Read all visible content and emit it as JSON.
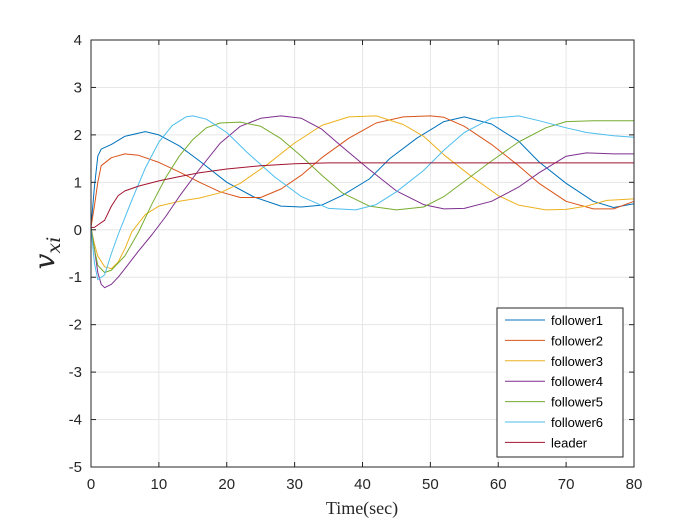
{
  "chart_data": {
    "type": "line",
    "title": "",
    "xlabel": "Time(sec)",
    "ylabel": "v",
    "ylabel_subscript": "xi",
    "xlim": [
      0,
      80
    ],
    "ylim": [
      -5,
      4
    ],
    "xticks": [
      0,
      10,
      20,
      30,
      40,
      50,
      60,
      70,
      80
    ],
    "yticks": [
      -5,
      -4,
      -3,
      -2,
      -1,
      0,
      1,
      2,
      3,
      4
    ],
    "grid": true,
    "legend_position": "bottom-right",
    "series": [
      {
        "name": "follower1",
        "color": "#0072BD",
        "x": [
          0,
          0.5,
          1,
          1.5,
          3,
          5,
          8,
          10,
          13,
          16,
          20,
          24,
          28,
          31,
          34,
          37,
          41,
          44,
          48,
          52,
          55,
          59,
          63,
          66,
          70,
          74,
          77,
          80
        ],
        "y": [
          0.05,
          0.9,
          1.55,
          1.7,
          1.8,
          1.97,
          2.07,
          2.0,
          1.77,
          1.45,
          1.0,
          0.69,
          0.5,
          0.48,
          0.52,
          0.72,
          1.07,
          1.5,
          1.93,
          2.28,
          2.38,
          2.23,
          1.87,
          1.43,
          0.98,
          0.6,
          0.47,
          0.55
        ]
      },
      {
        "name": "follower2",
        "color": "#D95319",
        "x": [
          0,
          0.5,
          1,
          1.5,
          3,
          5,
          7,
          10,
          13,
          16,
          19,
          22,
          25,
          28,
          31,
          34,
          38,
          42,
          46,
          50,
          52,
          55,
          59,
          63,
          66,
          70,
          74,
          77,
          80
        ],
        "y": [
          0.05,
          0.5,
          1.0,
          1.35,
          1.52,
          1.6,
          1.57,
          1.42,
          1.22,
          1.0,
          0.8,
          0.68,
          0.68,
          0.86,
          1.15,
          1.52,
          1.93,
          2.25,
          2.38,
          2.4,
          2.37,
          2.18,
          1.8,
          1.35,
          0.98,
          0.6,
          0.44,
          0.44,
          0.6
        ]
      },
      {
        "name": "follower3",
        "color": "#EDB120",
        "x": [
          0,
          0.5,
          1,
          2,
          3,
          4,
          5,
          6,
          8,
          10,
          13,
          16,
          19,
          22,
          26,
          30,
          34,
          38,
          42,
          46,
          49,
          52,
          56,
          60,
          63,
          67,
          70,
          73,
          76,
          80
        ],
        "y": [
          0.05,
          -0.3,
          -0.55,
          -0.78,
          -0.82,
          -0.68,
          -0.4,
          -0.05,
          0.32,
          0.5,
          0.6,
          0.67,
          0.78,
          0.98,
          1.38,
          1.83,
          2.2,
          2.38,
          2.4,
          2.22,
          1.97,
          1.58,
          1.13,
          0.72,
          0.52,
          0.42,
          0.43,
          0.5,
          0.62,
          0.65
        ]
      },
      {
        "name": "follower4",
        "color": "#7E2F8E",
        "x": [
          0,
          0.5,
          1,
          1.5,
          2,
          3,
          4,
          5,
          7,
          9,
          11,
          13,
          16,
          19,
          22,
          25,
          28,
          31,
          34,
          37,
          41,
          45,
          49,
          52,
          55,
          59,
          63,
          66,
          70,
          73,
          77,
          80
        ],
        "y": [
          0.05,
          -0.4,
          -0.9,
          -1.15,
          -1.22,
          -1.15,
          -1.0,
          -0.82,
          -0.45,
          -0.1,
          0.28,
          0.7,
          1.28,
          1.82,
          2.18,
          2.35,
          2.4,
          2.35,
          2.12,
          1.75,
          1.27,
          0.82,
          0.53,
          0.44,
          0.45,
          0.6,
          0.9,
          1.2,
          1.55,
          1.62,
          1.6,
          1.6
        ]
      },
      {
        "name": "follower5",
        "color": "#77AC30",
        "x": [
          0,
          0.5,
          1,
          2,
          3,
          5,
          7,
          9,
          11,
          13,
          15,
          17,
          19,
          22,
          25,
          28,
          31,
          34,
          37,
          41,
          45,
          49,
          52,
          55,
          59,
          63,
          67,
          70,
          74,
          77,
          80
        ],
        "y": [
          0.05,
          -0.4,
          -0.75,
          -0.9,
          -0.85,
          -0.55,
          -0.05,
          0.55,
          1.1,
          1.55,
          1.9,
          2.15,
          2.25,
          2.27,
          2.18,
          1.92,
          1.55,
          1.15,
          0.78,
          0.5,
          0.42,
          0.48,
          0.7,
          1.02,
          1.45,
          1.85,
          2.15,
          2.28,
          2.3,
          2.3,
          2.3
        ]
      },
      {
        "name": "follower6",
        "color": "#4DBEEE",
        "x": [
          0,
          0.5,
          1,
          2,
          3,
          4,
          6,
          8,
          10,
          12,
          14,
          15,
          17,
          20,
          23,
          27,
          31,
          35,
          39,
          42,
          45,
          49,
          52,
          55,
          59,
          63,
          66,
          70,
          73,
          77,
          80
        ],
        "y": [
          0.05,
          -0.7,
          -1.05,
          -0.95,
          -0.5,
          -0.1,
          0.62,
          1.3,
          1.85,
          2.2,
          2.38,
          2.4,
          2.33,
          2.05,
          1.63,
          1.12,
          0.7,
          0.45,
          0.42,
          0.53,
          0.8,
          1.25,
          1.68,
          2.05,
          2.35,
          2.4,
          2.3,
          2.15,
          2.05,
          1.98,
          1.95
        ]
      },
      {
        "name": "leader",
        "color": "#A2142F",
        "x": [
          0,
          0.5,
          1,
          2,
          3,
          4,
          5,
          7,
          10,
          13,
          16,
          20,
          25,
          30,
          35,
          40,
          50,
          60,
          70,
          80
        ],
        "y": [
          0.05,
          0.05,
          0.1,
          0.2,
          0.5,
          0.72,
          0.82,
          0.92,
          1.03,
          1.12,
          1.2,
          1.28,
          1.35,
          1.39,
          1.41,
          1.41,
          1.41,
          1.41,
          1.41,
          1.41
        ]
      }
    ]
  }
}
